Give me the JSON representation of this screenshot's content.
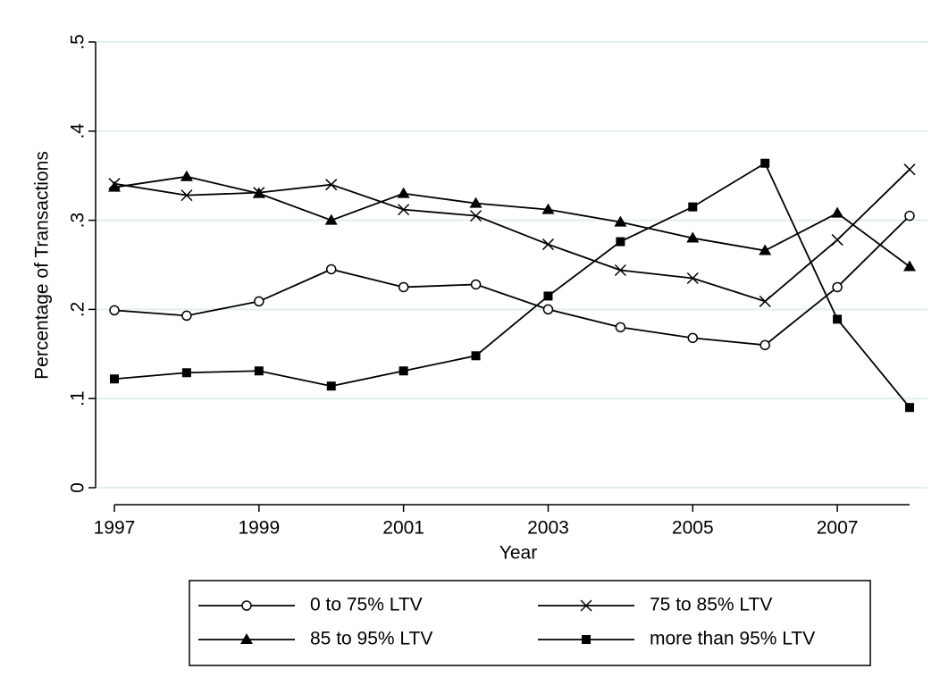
{
  "chart_data": {
    "type": "line",
    "x_label": "Year",
    "y_label": "Percentage of Transactions",
    "x": [
      1997,
      1998,
      1999,
      2000,
      2001,
      2002,
      2003,
      2004,
      2005,
      2006,
      2007,
      2008
    ],
    "series": [
      {
        "name": "0 to 75% LTV",
        "color": "#000000",
        "marker": "circle",
        "values": [
          0.199,
          0.193,
          0.209,
          0.245,
          0.225,
          0.228,
          0.2,
          0.18,
          0.168,
          0.16,
          0.225,
          0.305
        ]
      },
      {
        "name": "75 to 85% LTV",
        "color": "#000000",
        "marker": "x",
        "values": [
          0.341,
          0.328,
          0.331,
          0.34,
          0.312,
          0.305,
          0.273,
          0.244,
          0.235,
          0.209,
          0.278,
          0.357
        ]
      },
      {
        "name": "85 to 95% LTV",
        "color": "#000000",
        "marker": "triangle",
        "values": [
          0.337,
          0.349,
          0.33,
          0.3,
          0.33,
          0.319,
          0.312,
          0.298,
          0.28,
          0.266,
          0.308,
          0.248
        ]
      },
      {
        "name": "more than 95% LTV",
        "color": "#000000",
        "marker": "square",
        "values": [
          0.122,
          0.129,
          0.131,
          0.114,
          0.131,
          0.148,
          0.215,
          0.276,
          0.315,
          0.364,
          0.189,
          0.09
        ]
      }
    ],
    "xlim": [
      1997,
      2008
    ],
    "xticks": [
      1997,
      1999,
      2001,
      2003,
      2005,
      2007
    ],
    "ylim": [
      0,
      0.5
    ],
    "yticks": [
      0,
      {
        "value": 0.1,
        "label": ".1"
      },
      {
        "value": 0.2,
        "label": ".2"
      },
      {
        "value": 0.3,
        "label": ".3"
      },
      {
        "value": 0.4,
        "label": ".4"
      },
      {
        "value": 0.5,
        "label": ".5"
      }
    ],
    "grid": true,
    "legend_position": "bottom"
  }
}
